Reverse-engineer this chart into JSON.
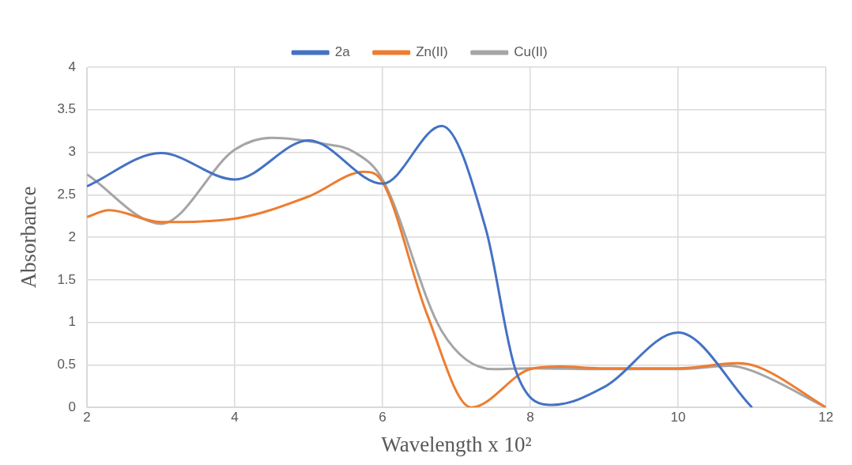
{
  "chart_data": {
    "type": "line",
    "xlabel": "Wavelength x 10²",
    "ylabel": "Absorbance",
    "xlim": [
      2,
      12
    ],
    "xticks": [
      2,
      4,
      6,
      8,
      10,
      12
    ],
    "ylim": [
      0,
      4
    ],
    "yticks": [
      0,
      0.5,
      1,
      1.5,
      2,
      2.5,
      3,
      3.5,
      4
    ],
    "grid": true,
    "legend": "top",
    "marker": "none",
    "line_style": "solid",
    "series": [
      {
        "name": "2a",
        "color": "#4472c4",
        "x": [
          2,
          3,
          4,
          5,
          6,
          6.8,
          7.4,
          7.8,
          8.3,
          9,
          10,
          11
        ],
        "values": [
          2.6,
          2.99,
          2.68,
          3.14,
          2.63,
          3.31,
          2.09,
          0.44,
          0.03,
          0.24,
          0.88,
          0
        ]
      },
      {
        "name": "Zn(II)",
        "color": "#ed7d31",
        "x": [
          2,
          2.3,
          3,
          4,
          5,
          5.75,
          6,
          6.6,
          7.2,
          8,
          8.4,
          9,
          10,
          10.8,
          11.1,
          12
        ],
        "values": [
          2.24,
          2.32,
          2.18,
          2.22,
          2.48,
          2.77,
          2.65,
          1.1,
          0,
          0.45,
          0.48,
          0.46,
          0.46,
          0.52,
          0.47,
          0
        ]
      },
      {
        "name": "Cu(II)",
        "color": "#a5a5a5",
        "x": [
          2,
          3,
          4,
          4.5,
          5.2,
          5.6,
          6,
          6.8,
          7.5,
          8,
          9,
          10,
          10.7,
          11,
          12
        ],
        "values": [
          2.74,
          2.16,
          3.03,
          3.17,
          3.1,
          3.01,
          2.68,
          0.9,
          0.45,
          0.46,
          0.45,
          0.45,
          0.49,
          0.43,
          0
        ]
      }
    ]
  }
}
